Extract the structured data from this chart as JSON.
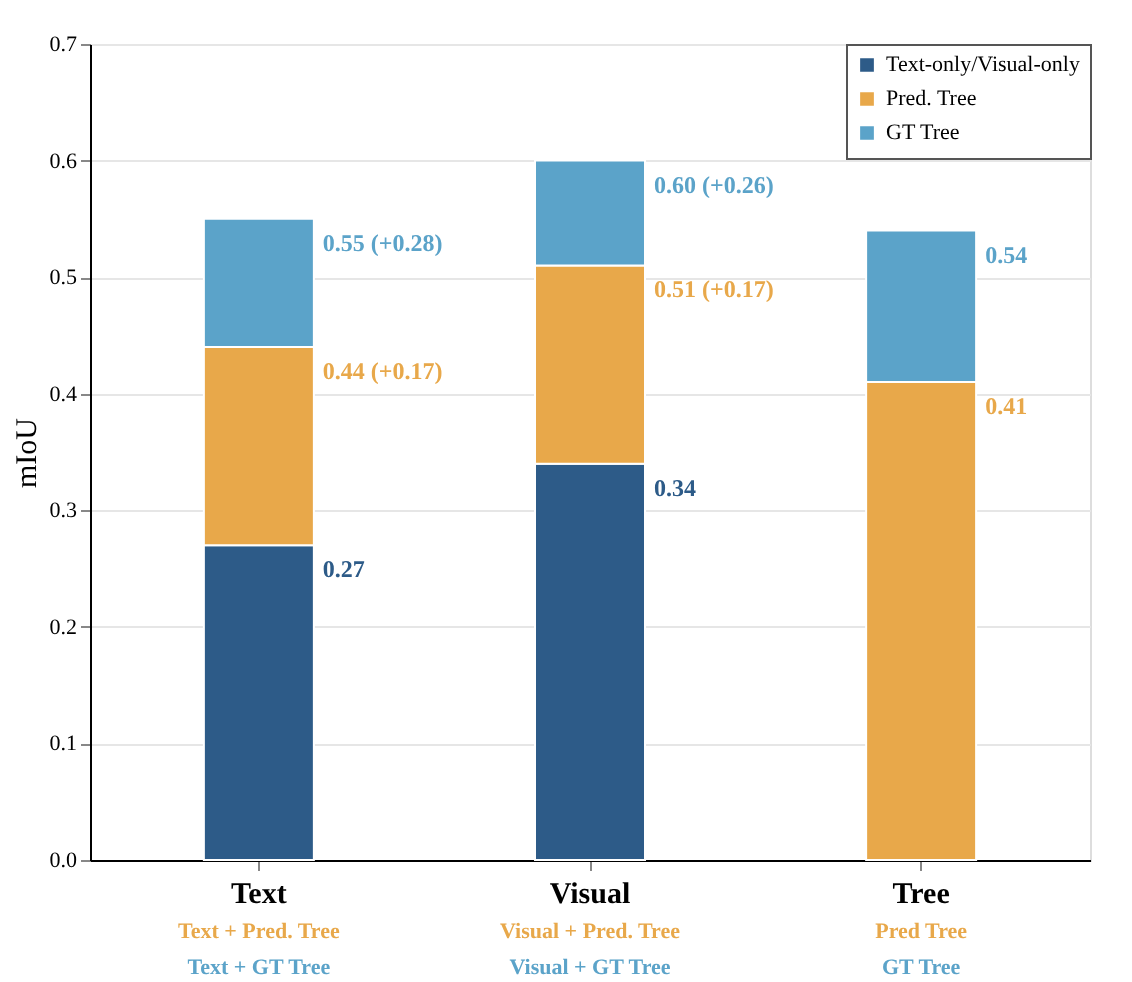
{
  "chart_data": {
    "type": "bar",
    "stacked": true,
    "categories": [
      "Text",
      "Visual",
      "Tree"
    ],
    "ylabel": "mIoU",
    "ylim": [
      0,
      0.7
    ],
    "yticks": [
      {
        "value": 0,
        "label": "0.0"
      },
      0.1,
      0.2,
      0.3,
      0.4,
      0.5,
      0.6,
      0.7
    ],
    "grid": "y",
    "legend": "top right",
    "series": [
      {
        "name": "Text-only/Visual-only",
        "color": "#2d5b88",
        "values": [
          0.27,
          0.34,
          null
        ]
      },
      {
        "name": "Pred. Tree",
        "color": "#e8a84a",
        "values": [
          0.17,
          0.17,
          0.41
        ]
      },
      {
        "name": "GT Tree",
        "color": "#5ba3c9",
        "values": [
          0.11,
          0.09,
          0.13
        ]
      }
    ],
    "annotations": [
      {
        "text": "0.27",
        "x": "Text",
        "y": 0.27
      },
      {
        "text": "0.34",
        "x": "Visual",
        "y": 0.34
      },
      {
        "text": "0.44 (+0.17)",
        "x": "Text",
        "y": 0.44
      },
      {
        "text": "0.51 (+0.17)",
        "x": "Visual",
        "y": 0.51
      },
      {
        "text": "0.41",
        "x": "Tree",
        "y": 0.41
      },
      {
        "text": "0.55 (+0.28)",
        "x": "Text",
        "y": 0.55
      },
      {
        "text": "0.60 (+0.26)",
        "x": "Visual",
        "y": 0.6
      },
      {
        "text": "0.54",
        "x": "Tree",
        "y": 0.54
      },
      "Text + Pred. Tree",
      "Text + GT Tree",
      "Visual + Pred. Tree",
      "Visual + GT Tree",
      "Pred Tree",
      "GT Tree"
    ]
  }
}
